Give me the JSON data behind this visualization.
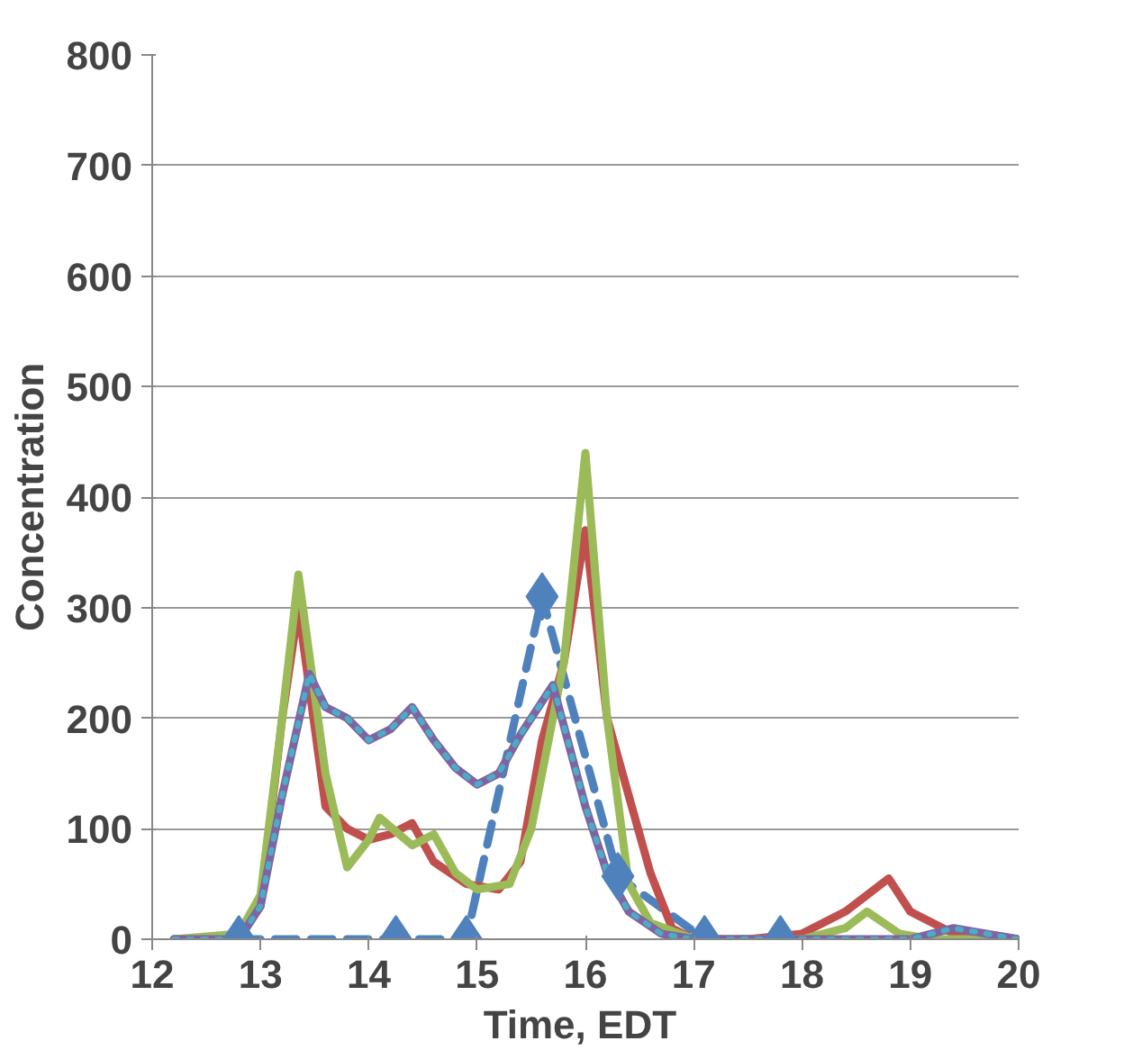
{
  "chart_data": {
    "type": "line",
    "xlabel": "Time,  EDT",
    "ylabel": "Concentration",
    "xlim": [
      12,
      20
    ],
    "ylim": [
      0,
      800
    ],
    "xticks": [
      12,
      13,
      14,
      15,
      16,
      17,
      18,
      19,
      20
    ],
    "yticks": [
      0,
      100,
      200,
      300,
      400,
      500,
      600,
      700,
      800
    ],
    "grid": "y",
    "series": [
      {
        "color": "#4f81bd",
        "line_style": "dashed",
        "marker": "diamond",
        "x": [
          12.8,
          14.25,
          14.9,
          15.6,
          16.3,
          17.1,
          17.8
        ],
        "values": [
          0,
          0,
          0,
          310,
          57,
          0,
          0
        ]
      },
      {
        "color": "#c0504d",
        "line_style": "solid",
        "marker": "none",
        "x": [
          12.2,
          12.8,
          13.0,
          13.2,
          13.35,
          13.6,
          13.8,
          14.0,
          14.2,
          14.4,
          14.6,
          14.9,
          15.2,
          15.4,
          15.6,
          15.8,
          16.0,
          16.2,
          16.4,
          16.6,
          16.8,
          17.0,
          17.5,
          18.0,
          18.4,
          18.8,
          19.0,
          19.4,
          19.8,
          20.0
        ],
        "values": [
          0,
          0,
          30,
          200,
          300,
          120,
          100,
          90,
          95,
          105,
          70,
          50,
          45,
          70,
          180,
          250,
          370,
          200,
          130,
          60,
          10,
          0,
          0,
          5,
          25,
          55,
          25,
          5,
          3,
          0
        ]
      },
      {
        "color": "#9bbb59",
        "line_style": "solid",
        "marker": "none",
        "x": [
          12.2,
          12.8,
          13.0,
          13.2,
          13.35,
          13.6,
          13.8,
          14.0,
          14.1,
          14.4,
          14.6,
          14.8,
          15.0,
          15.3,
          15.5,
          15.8,
          16.0,
          16.2,
          16.4,
          16.6,
          17.0,
          18.0,
          18.4,
          18.6,
          18.9,
          19.2,
          20.0
        ],
        "values": [
          0,
          5,
          40,
          200,
          330,
          150,
          65,
          90,
          110,
          85,
          95,
          60,
          45,
          50,
          100,
          250,
          440,
          200,
          50,
          15,
          0,
          0,
          10,
          25,
          5,
          0,
          0
        ]
      },
      {
        "color": "#8064a2",
        "line_style": "solid",
        "marker": "none",
        "x": [
          12.2,
          12.8,
          13.0,
          13.2,
          13.45,
          13.6,
          13.8,
          14.0,
          14.2,
          14.4,
          14.6,
          14.8,
          15.0,
          15.2,
          15.4,
          15.7,
          16.0,
          16.2,
          16.4,
          16.7,
          17.0,
          19.0,
          19.4,
          20.0
        ],
        "values": [
          0,
          0,
          30,
          130,
          240,
          210,
          200,
          180,
          190,
          210,
          180,
          155,
          140,
          150,
          185,
          230,
          120,
          60,
          25,
          5,
          0,
          0,
          10,
          0
        ]
      },
      {
        "color": "#4bacc6",
        "line_style": "dotted",
        "marker": "none",
        "x": [
          12.2,
          12.8,
          13.0,
          13.2,
          13.45,
          13.6,
          13.8,
          14.0,
          14.2,
          14.4,
          14.6,
          14.8,
          15.0,
          15.2,
          15.4,
          15.7,
          16.0,
          16.2,
          16.4,
          16.7,
          17.0,
          19.0,
          19.4,
          20.0
        ],
        "values": [
          0,
          0,
          30,
          130,
          240,
          210,
          200,
          180,
          190,
          210,
          180,
          155,
          140,
          150,
          185,
          230,
          120,
          60,
          25,
          5,
          0,
          0,
          10,
          0
        ]
      }
    ]
  }
}
